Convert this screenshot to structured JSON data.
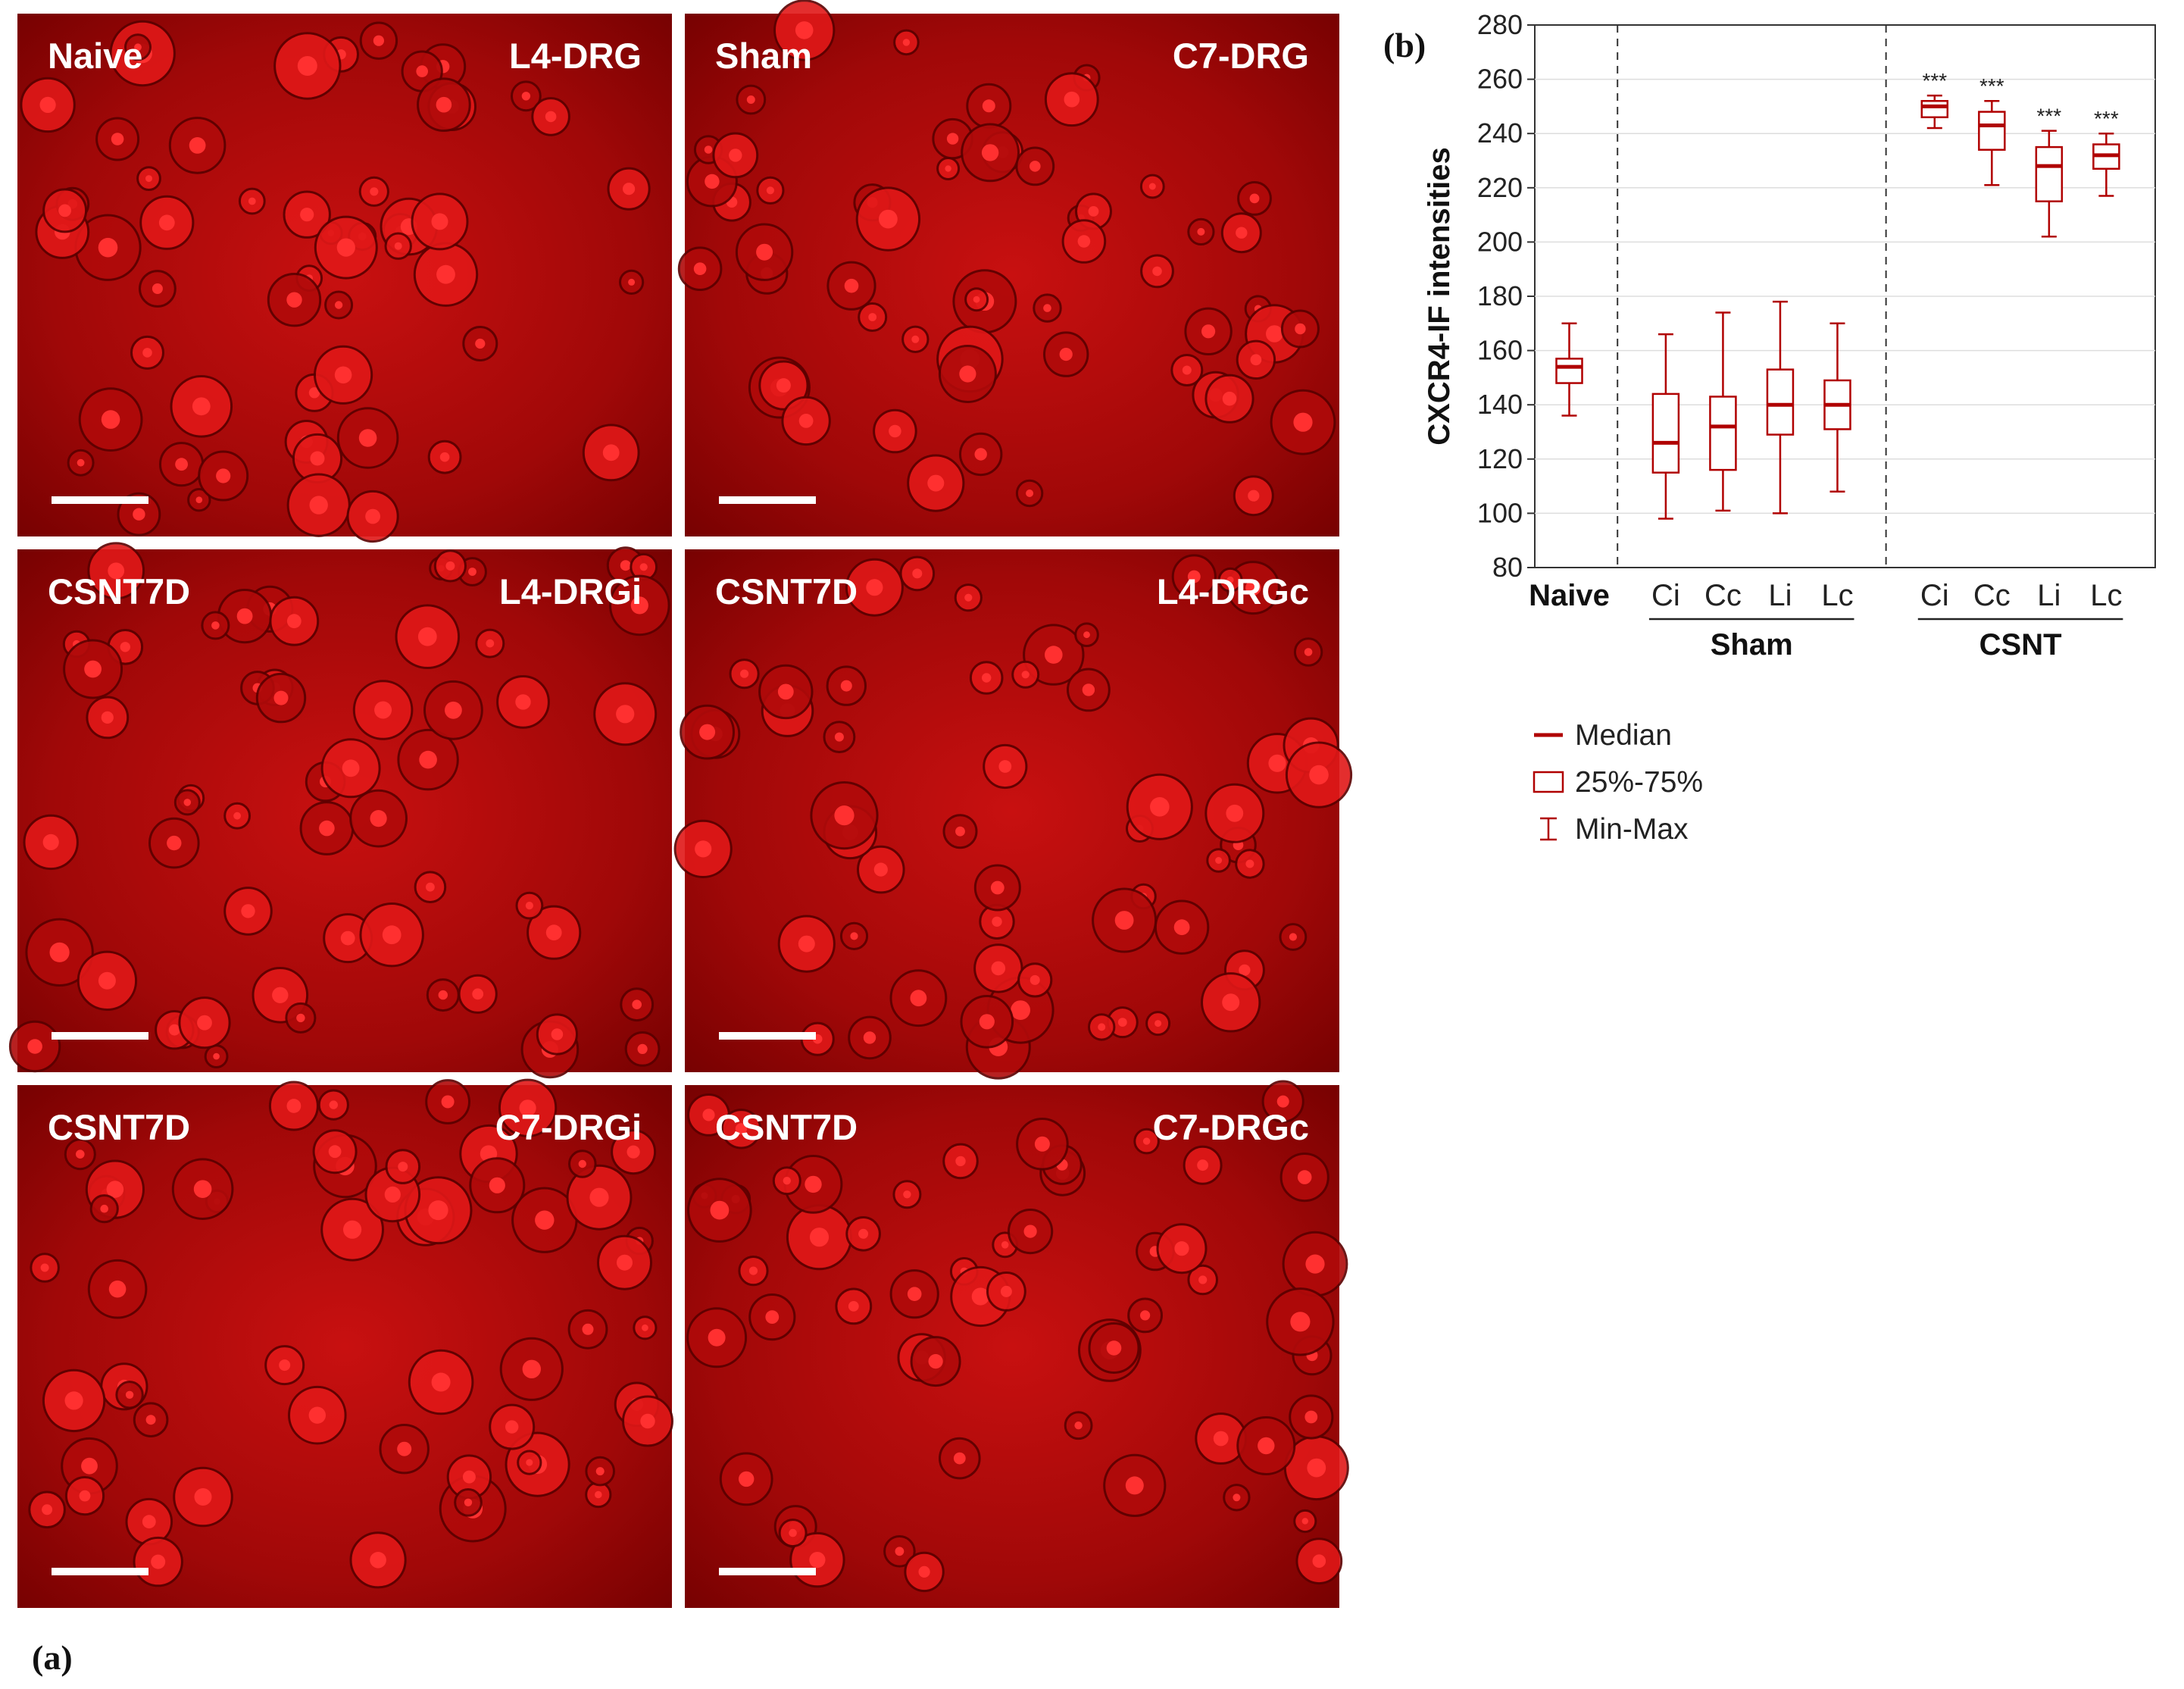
{
  "panel_a": {
    "letter": "(a)",
    "panels": [
      {
        "group": "Naive",
        "site": "L4-DRG"
      },
      {
        "group": "Sham",
        "site": "C7-DRG"
      },
      {
        "group": "CSNT7D",
        "site": "L4-DRGi"
      },
      {
        "group": "CSNT7D",
        "site": "L4-DRGc"
      },
      {
        "group": "CSNT7D",
        "site": "C7-DRGi"
      },
      {
        "group": "CSNT7D",
        "site": "C7-DRGc"
      }
    ],
    "image_color": "#d80000"
  },
  "panel_b_letter": "(b)",
  "chart_data": {
    "type": "boxplot",
    "ylabel": "CXCR4-IF intensities",
    "ylim": [
      80,
      280
    ],
    "yticks": [
      80,
      100,
      120,
      140,
      160,
      180,
      200,
      220,
      240,
      260,
      280
    ],
    "grid": true,
    "color": "#b00000",
    "categories": [
      "Naive",
      "Ci",
      "Cc",
      "Li",
      "Lc",
      "Ci",
      "Cc",
      "Li",
      "Lc"
    ],
    "groups": [
      {
        "label": "Sham",
        "members": [
          1,
          2,
          3,
          4
        ]
      },
      {
        "label": "CSNT",
        "members": [
          5,
          6,
          7,
          8
        ]
      }
    ],
    "boxes": [
      {
        "min": 136,
        "q1": 148,
        "median": 154,
        "q3": 157,
        "max": 170,
        "annotation": ""
      },
      {
        "min": 98,
        "q1": 115,
        "median": 126,
        "q3": 144,
        "max": 166,
        "annotation": ""
      },
      {
        "min": 101,
        "q1": 116,
        "median": 132,
        "q3": 143,
        "max": 174,
        "annotation": ""
      },
      {
        "min": 100,
        "q1": 129,
        "median": 140,
        "q3": 153,
        "max": 178,
        "annotation": ""
      },
      {
        "min": 108,
        "q1": 131,
        "median": 140,
        "q3": 149,
        "max": 170,
        "annotation": ""
      },
      {
        "min": 242,
        "q1": 246,
        "median": 250,
        "q3": 252,
        "max": 254,
        "annotation": "***"
      },
      {
        "min": 221,
        "q1": 234,
        "median": 243,
        "q3": 248,
        "max": 252,
        "annotation": "***"
      },
      {
        "min": 202,
        "q1": 215,
        "median": 228,
        "q3": 235,
        "max": 241,
        "annotation": "***"
      },
      {
        "min": 217,
        "q1": 227,
        "median": 232,
        "q3": 236,
        "max": 240,
        "annotation": "***"
      }
    ],
    "legend": {
      "placement": "below",
      "items": [
        {
          "symbol": "median",
          "label": "Median"
        },
        {
          "symbol": "box",
          "label": "25%-75%"
        },
        {
          "symbol": "whisker",
          "label": "Min-Max"
        }
      ]
    }
  }
}
